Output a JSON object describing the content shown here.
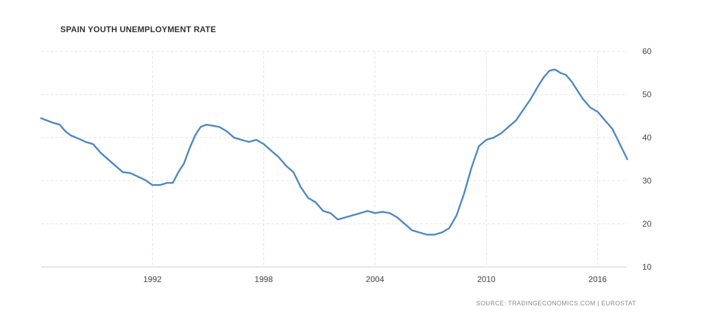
{
  "chart_data": {
    "type": "line",
    "title": "SPAIN YOUTH UNEMPLOYMENT RATE",
    "source": "SOURCE: TRADINGECONOMICS.COM | EUROSTAT",
    "xlim": [
      1986,
      2017.6
    ],
    "ylim": [
      10,
      60
    ],
    "x_ticks": [
      1992,
      1998,
      2004,
      2010,
      2016
    ],
    "y_ticks": [
      10,
      20,
      30,
      40,
      50,
      60
    ],
    "grid": true,
    "series": [
      {
        "color": "#4a88c6",
        "x": [
          1986.0,
          1986.3,
          1986.6,
          1987.0,
          1987.3,
          1987.6,
          1988.0,
          1988.4,
          1988.8,
          1989.2,
          1989.6,
          1990.0,
          1990.4,
          1990.8,
          1991.2,
          1991.6,
          1992.0,
          1992.4,
          1992.8,
          1993.1,
          1993.4,
          1993.7,
          1994.0,
          1994.3,
          1994.6,
          1994.9,
          1995.2,
          1995.6,
          1996.0,
          1996.4,
          1996.8,
          1997.2,
          1997.6,
          1998.0,
          1998.4,
          1998.8,
          1999.2,
          1999.6,
          2000.0,
          2000.4,
          2000.8,
          2001.2,
          2001.6,
          2002.0,
          2002.4,
          2002.8,
          2003.2,
          2003.6,
          2004.0,
          2004.4,
          2004.8,
          2005.2,
          2005.6,
          2006.0,
          2006.4,
          2006.8,
          2007.2,
          2007.6,
          2008.0,
          2008.4,
          2008.8,
          2009.2,
          2009.6,
          2010.0,
          2010.4,
          2010.8,
          2011.2,
          2011.6,
          2012.0,
          2012.4,
          2012.8,
          2013.1,
          2013.4,
          2013.7,
          2014.0,
          2014.3,
          2014.6,
          2014.9,
          2015.2,
          2015.6,
          2016.0,
          2016.4,
          2016.8,
          2017.2,
          2017.6
        ],
        "y": [
          44.5,
          44.0,
          43.5,
          43.0,
          41.5,
          40.5,
          39.8,
          39.0,
          38.5,
          36.5,
          35.0,
          33.5,
          32.0,
          31.8,
          31.0,
          30.2,
          29.0,
          29.0,
          29.5,
          29.5,
          32.0,
          34.0,
          37.5,
          40.5,
          42.5,
          43.0,
          42.8,
          42.5,
          41.5,
          40.0,
          39.5,
          39.0,
          39.5,
          38.5,
          37.0,
          35.5,
          33.5,
          32.0,
          28.5,
          26.0,
          25.0,
          23.0,
          22.5,
          21.0,
          21.5,
          22.0,
          22.5,
          23.0,
          22.5,
          22.8,
          22.5,
          21.5,
          20.0,
          18.5,
          18.0,
          17.5,
          17.5,
          18.0,
          19.0,
          22.0,
          27.0,
          33.0,
          38.0,
          39.5,
          40.0,
          41.0,
          42.5,
          44.0,
          46.5,
          49.0,
          52.0,
          54.0,
          55.5,
          55.8,
          55.0,
          54.5,
          53.0,
          51.0,
          49.0,
          47.0,
          46.0,
          44.0,
          42.0,
          38.5,
          35.0
        ]
      }
    ]
  }
}
